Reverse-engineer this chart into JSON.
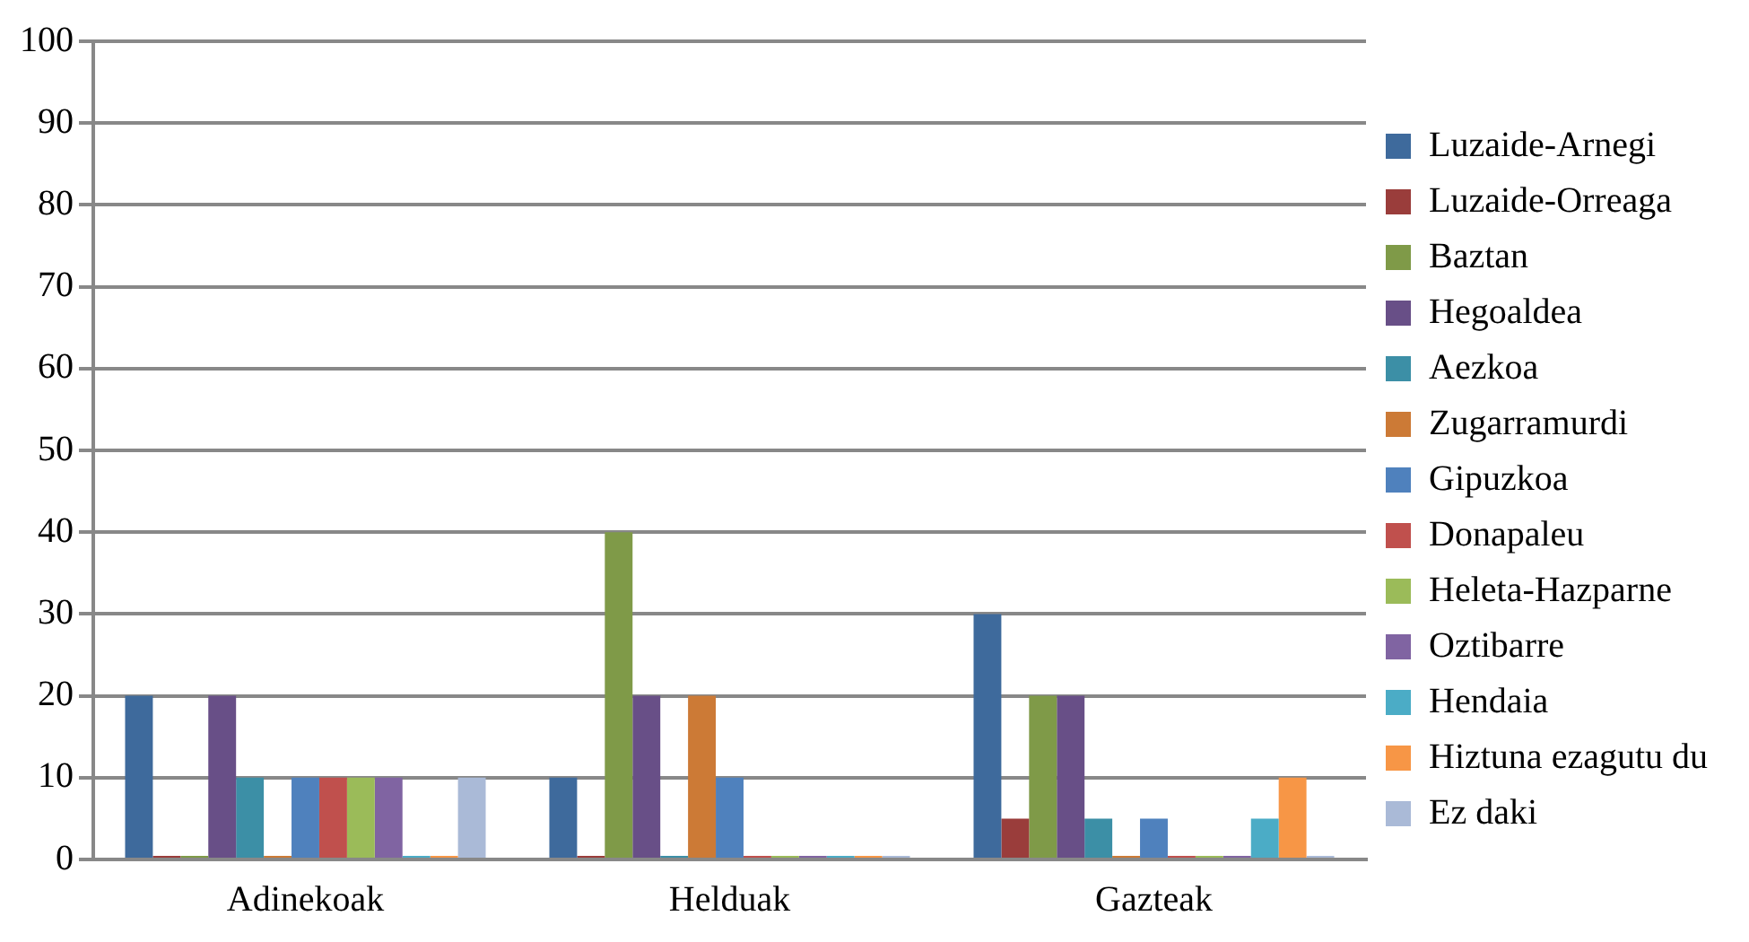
{
  "chart_data": {
    "type": "bar",
    "categories": [
      "Adinekoak",
      "Helduak",
      "Gazteak"
    ],
    "ylim": [
      0,
      100
    ],
    "yticks": [
      0,
      10,
      20,
      30,
      40,
      50,
      60,
      70,
      80,
      90,
      100
    ],
    "grid": "y",
    "legend": "right",
    "series": [
      {
        "name": "Luzaide-Arnegi",
        "color": "#3e6a9c",
        "values": [
          20,
          10,
          30
        ]
      },
      {
        "name": "Luzaide-Orreaga",
        "color": "#9a3d3b",
        "values": [
          0,
          0,
          5
        ]
      },
      {
        "name": "Baztan",
        "color": "#7f9a48",
        "values": [
          0,
          40,
          20
        ]
      },
      {
        "name": "Hegoaldea",
        "color": "#684f87",
        "values": [
          20,
          20,
          20
        ]
      },
      {
        "name": "Aezkoa",
        "color": "#3c8fa6",
        "values": [
          10,
          0,
          5
        ]
      },
      {
        "name": "Zugarramurdi",
        "color": "#cc7a36",
        "values": [
          0,
          20,
          0
        ]
      },
      {
        "name": "Gipuzkoa",
        "color": "#4f81bd",
        "values": [
          10,
          10,
          5
        ]
      },
      {
        "name": "Donapaleu",
        "color": "#c0504d",
        "values": [
          10,
          0,
          0
        ]
      },
      {
        "name": "Heleta-Hazparne",
        "color": "#9bbb59",
        "values": [
          10,
          0,
          0
        ]
      },
      {
        "name": "Oztibarre",
        "color": "#8064a2",
        "values": [
          10,
          0,
          0
        ]
      },
      {
        "name": "Hendaia",
        "color": "#4bacc6",
        "values": [
          0,
          0,
          5
        ]
      },
      {
        "name": "Hiztuna ezagutu du",
        "color": "#f79646",
        "values": [
          0,
          0,
          10
        ]
      },
      {
        "name": "Ez daki",
        "color": "#aabad7",
        "values": [
          10,
          0,
          0
        ]
      }
    ]
  }
}
